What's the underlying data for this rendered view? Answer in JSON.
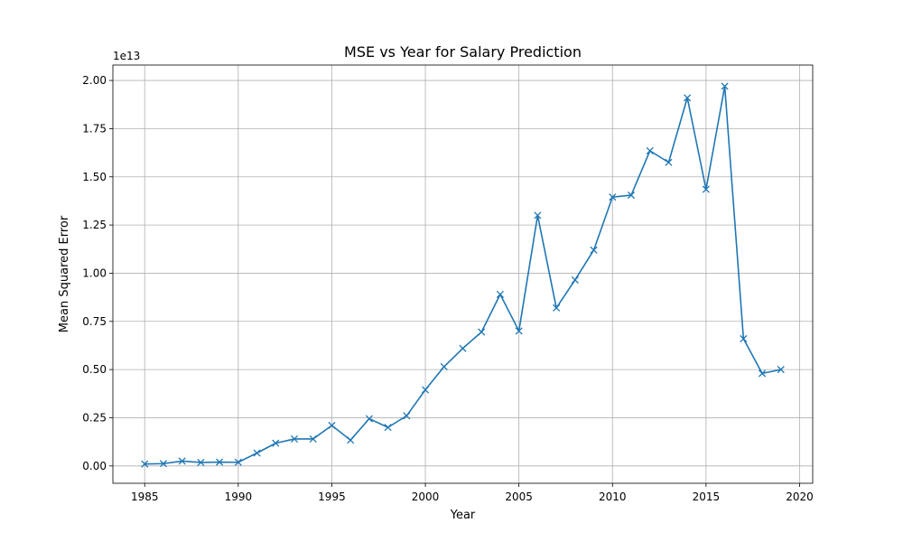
{
  "chart_data": {
    "type": "line",
    "title": "MSE vs Year for Salary Prediction",
    "xlabel": "Year",
    "ylabel": "Mean Squared Error",
    "y_offset_label": "1e13",
    "xlim": [
      1983.3,
      2020.7
    ],
    "ylim": [
      -0.09,
      2.08
    ],
    "x_ticks": [
      1985,
      1990,
      1995,
      2000,
      2005,
      2010,
      2015,
      2020
    ],
    "x_tick_labels": [
      "1985",
      "1990",
      "1995",
      "2000",
      "2005",
      "2010",
      "2015",
      "2020"
    ],
    "y_ticks": [
      0,
      0.25,
      0.5,
      0.75,
      1.0,
      1.25,
      1.5,
      1.75,
      2.0
    ],
    "y_tick_labels": [
      "0.00",
      "0.25",
      "0.50",
      "0.75",
      "1.00",
      "1.25",
      "1.50",
      "1.75",
      "2.00"
    ],
    "grid": true,
    "marker": "x",
    "color": "#1f77b4",
    "series": [
      {
        "x": [
          1985,
          1986,
          1987,
          1988,
          1989,
          1990,
          1991,
          1992,
          1993,
          1994,
          1995,
          1996,
          1997,
          1998,
          1999,
          2000,
          2001,
          2002,
          2003,
          2004,
          2005,
          2006,
          2007,
          2008,
          2009,
          2010,
          2011,
          2012,
          2013,
          2014,
          2015,
          2016,
          2017,
          2018,
          2019
        ],
        "values": [
          0.01,
          0.012,
          0.025,
          0.018,
          0.02,
          0.019,
          0.067,
          0.118,
          0.14,
          0.14,
          0.21,
          0.134,
          0.245,
          0.2,
          0.26,
          0.395,
          0.515,
          0.61,
          0.695,
          0.89,
          0.7,
          1.3,
          0.82,
          0.965,
          1.12,
          1.395,
          1.405,
          1.635,
          1.575,
          1.91,
          1.435,
          1.97,
          0.66,
          0.48,
          0.5
        ]
      }
    ]
  }
}
